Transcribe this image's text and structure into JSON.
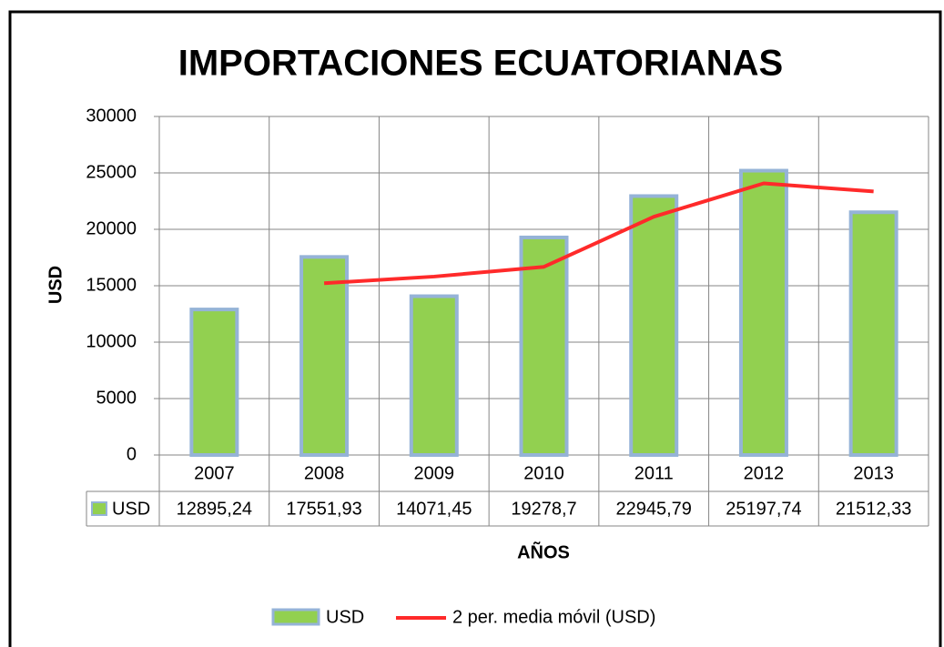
{
  "chart_data": {
    "type": "bar",
    "title": "IMPORTACIONES ECUATORIANAS",
    "y_label": "USD",
    "x_label": "AÑOS",
    "categories": [
      "2007",
      "2008",
      "2009",
      "2010",
      "2011",
      "2012",
      "2013"
    ],
    "series": [
      {
        "name": "USD",
        "type": "bar",
        "color": "#92d050",
        "edge_color": "#95b3d7",
        "values": [
          12895.24,
          17551.93,
          14071.45,
          19278.7,
          22945.79,
          25197.74,
          21512.33
        ],
        "value_labels": [
          "12895,24",
          "17551,93",
          "14071,45",
          "19278,7",
          "22945,79",
          "25197,74",
          "21512,33"
        ]
      },
      {
        "name": "2 per. media móvil (USD)",
        "type": "line",
        "color": "#ff2a2a",
        "values": [
          null,
          15223.585,
          15811.69,
          16675.075,
          21112.245,
          24071.765,
          23355.035
        ]
      }
    ],
    "ylim": [
      0,
      30000
    ],
    "yticks": [
      0,
      5000,
      10000,
      15000,
      20000,
      25000,
      30000
    ],
    "grid": true,
    "legend": "bottom"
  }
}
